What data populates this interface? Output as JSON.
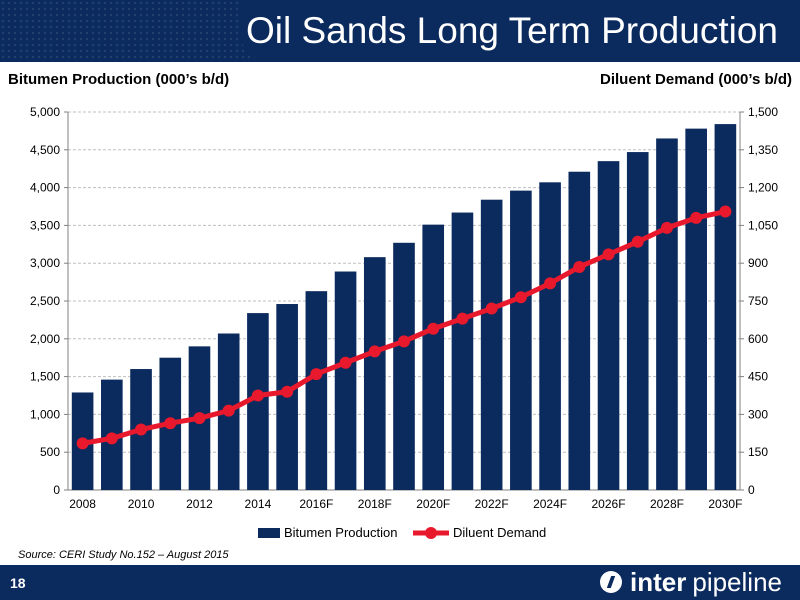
{
  "slide": {
    "title": "Oil Sands Long Term Production",
    "page_number": "18",
    "source": "Source: CERI Study No.152 – August 2015",
    "logo": {
      "word1": "inter",
      "word2": "pipeline",
      "icon": "interpipeline-logo-icon"
    }
  },
  "colors": {
    "navy": "#0b2a5e",
    "bar": "#0b2a5e",
    "line": "#e8192c",
    "grid": "#bfbfbf"
  },
  "chart_data": {
    "type": "bar",
    "left_axis_title": "Bitumen Production (000’s b/d)",
    "right_axis_title": "Diluent Demand (000’s b/d)",
    "categories": [
      "2008",
      "2009",
      "2010",
      "2011",
      "2012",
      "2013",
      "2014",
      "2015",
      "2016F",
      "2017F",
      "2018F",
      "2019F",
      "2020F",
      "2021F",
      "2022F",
      "2023F",
      "2024F",
      "2025F",
      "2026F",
      "2027F",
      "2028F",
      "2029F",
      "2030F"
    ],
    "x_tick_labels": [
      "2008",
      "",
      "2010",
      "",
      "2012",
      "",
      "2014",
      "",
      "2016F",
      "",
      "2018F",
      "",
      "2020F",
      "",
      "2022F",
      "",
      "2024F",
      "",
      "2026F",
      "",
      "2028F",
      "",
      "2030F"
    ],
    "y_left": {
      "min": 0,
      "max": 5000,
      "ticks": [
        "0",
        "500",
        "1,000",
        "1,500",
        "2,000",
        "2,500",
        "3,000",
        "3,500",
        "4,000",
        "4,500",
        "5,000"
      ]
    },
    "y_right": {
      "min": 0,
      "max": 1500,
      "ticks": [
        "0",
        "150",
        "300",
        "450",
        "600",
        "750",
        "900",
        "1,050",
        "1,200",
        "1,350",
        "1,500"
      ]
    },
    "grid": true,
    "legend_position": "bottom",
    "series": [
      {
        "name": "Bitumen Production",
        "kind": "bar",
        "axis": "left",
        "values": [
          1290,
          1460,
          1600,
          1750,
          1900,
          2070,
          2340,
          2460,
          2630,
          2890,
          3080,
          3270,
          3510,
          3670,
          3840,
          3960,
          4070,
          4210,
          4350,
          4470,
          4650,
          4780,
          4840
        ]
      },
      {
        "name": "Diluent Demand",
        "kind": "line",
        "axis": "right",
        "values": [
          185,
          205,
          240,
          265,
          285,
          315,
          375,
          390,
          460,
          505,
          550,
          590,
          640,
          680,
          720,
          765,
          820,
          885,
          935,
          985,
          1040,
          1080,
          1105
        ]
      }
    ]
  }
}
